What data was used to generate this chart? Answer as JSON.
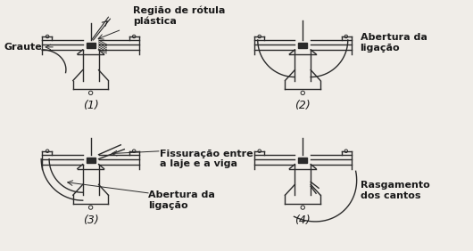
{
  "background_color": "#f0ede8",
  "labels": {
    "graute": "Graute",
    "regiao": "Região de rótula\nplástica",
    "abertura_da": "Abertura da\nligação",
    "fissuração": "Fissuração entre\na laje e a viga",
    "abertura3": "Abertura da\nligação",
    "rasgamento": "Rasgamento\ndos cantos",
    "num1": "(1)",
    "num2": "(2)",
    "num3": "(3)",
    "num4": "(4)"
  },
  "text_color": "#1a1a1a",
  "line_color": "#2a2a2a",
  "font_size_labels": 8.0,
  "font_size_nums": 9
}
